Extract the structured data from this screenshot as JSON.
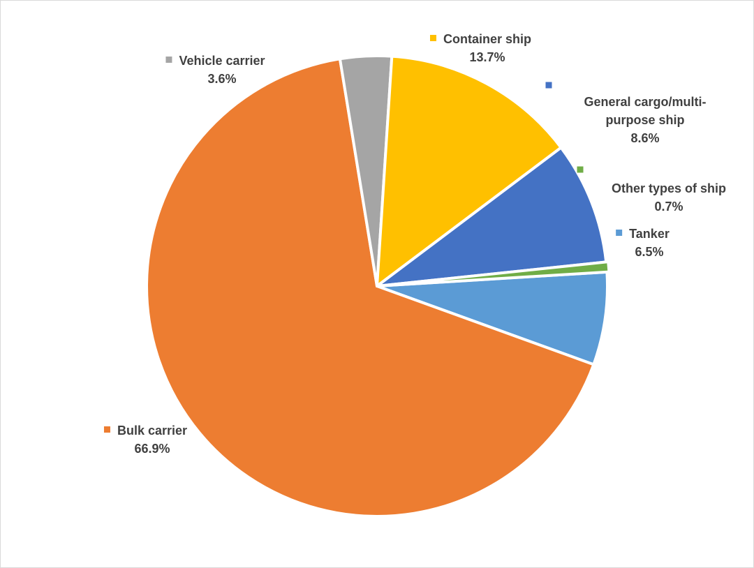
{
  "chart_data": {
    "type": "pie",
    "slices": [
      {
        "name": "Tanker",
        "value": 6.5,
        "label": "6.5%",
        "color": "#5B9BD5"
      },
      {
        "name": "Bulk carrier",
        "value": 66.9,
        "label": "66.9%",
        "color": "#ED7D31"
      },
      {
        "name": "Vehicle carrier",
        "value": 3.6,
        "label": "3.6%",
        "color": "#A5A5A5"
      },
      {
        "name": "Container ship",
        "value": 13.7,
        "label": "13.7%",
        "color": "#FFC000"
      },
      {
        "name": "General cargo/multi-purpose ship",
        "value": 8.6,
        "label": "8.6%",
        "color": "#4472C4"
      },
      {
        "name": "Other types of ship",
        "value": 0.7,
        "label": "0.7%",
        "color": "#70AD47"
      }
    ]
  }
}
